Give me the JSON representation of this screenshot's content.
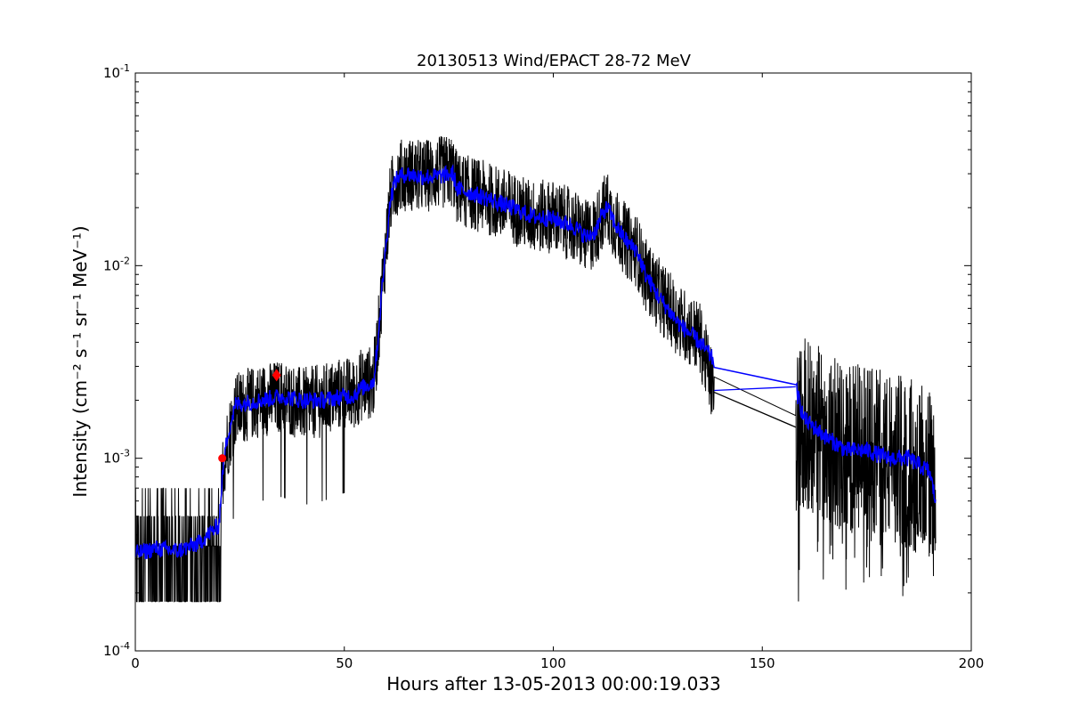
{
  "chart_data": {
    "type": "line",
    "title": "20130513 Wind/EPACT 28-72 MeV",
    "xlabel": "Hours after 13-05-2013 00:00:19.033",
    "ylabel": "Intensity (cm⁻² s⁻¹ sr⁻¹ MeV⁻¹)",
    "xlim": [
      0,
      200
    ],
    "ylim": [
      0.0001,
      0.1
    ],
    "yscale": "log",
    "grid": false,
    "x_ticks": [
      {
        "value": 0,
        "label": "0"
      },
      {
        "value": 50,
        "label": "50"
      },
      {
        "value": 100,
        "label": "100"
      },
      {
        "value": 150,
        "label": "150"
      },
      {
        "value": 200,
        "label": "200"
      }
    ],
    "y_ticks": [
      {
        "value": 0.0001,
        "base": "10",
        "exp": "-4"
      },
      {
        "value": 0.001,
        "base": "10",
        "exp": "-3"
      },
      {
        "value": 0.01,
        "base": "10",
        "exp": "-2"
      },
      {
        "value": 0.1,
        "base": "10",
        "exp": "-1"
      }
    ],
    "series": [
      {
        "style": "raw",
        "color": "#000000",
        "x": [
          0,
          5,
          10,
          15,
          20,
          20.5,
          21,
          22,
          24,
          30,
          35,
          40,
          45,
          50,
          52,
          54,
          57,
          58,
          59,
          60,
          61,
          62,
          63,
          65,
          68,
          72,
          76,
          77,
          80,
          85,
          90,
          95,
          100,
          105,
          108,
          110,
          112,
          113,
          115,
          118,
          120,
          122,
          125,
          130,
          135,
          138.5,
          158,
          160,
          165,
          170,
          175,
          180,
          185,
          190,
          191.5
        ],
        "y": [
          0.0003,
          0.00033,
          0.00031,
          0.00035,
          0.0004,
          0.0006,
          0.0009,
          0.0012,
          0.0018,
          0.002,
          0.0021,
          0.0019,
          0.002,
          0.0022,
          0.0021,
          0.0024,
          0.0025,
          0.004,
          0.0075,
          0.013,
          0.022,
          0.027,
          0.029,
          0.03,
          0.029,
          0.03,
          0.031,
          0.025,
          0.024,
          0.022,
          0.02,
          0.018,
          0.018,
          0.016,
          0.014,
          0.015,
          0.019,
          0.02,
          0.016,
          0.013,
          0.012,
          0.009,
          0.0072,
          0.0052,
          0.0042,
          0.0022,
          0.0014,
          0.0015,
          0.0013,
          0.0011,
          0.0011,
          0.001,
          0.00095,
          0.0008,
          0.0006
        ]
      },
      {
        "style": "smoothed",
        "color": "#0000ff",
        "x": [
          0,
          5,
          10,
          15,
          20,
          21,
          22,
          24,
          30,
          35,
          40,
          45,
          50,
          52,
          54,
          57,
          58,
          59,
          60,
          61,
          62,
          63,
          65,
          68,
          72,
          76,
          77,
          80,
          85,
          90,
          95,
          100,
          105,
          108,
          110,
          112,
          113,
          115,
          118,
          120,
          122,
          125,
          130,
          135,
          138.5,
          158,
          160,
          165,
          170,
          175,
          180,
          185,
          190,
          191.5
        ],
        "y": [
          0.00032,
          0.00034,
          0.00033,
          0.00036,
          0.00045,
          0.0009,
          0.0013,
          0.0019,
          0.002,
          0.0021,
          0.002,
          0.002,
          0.0021,
          0.0021,
          0.0023,
          0.0025,
          0.004,
          0.0075,
          0.013,
          0.022,
          0.027,
          0.029,
          0.03,
          0.029,
          0.029,
          0.03,
          0.025,
          0.024,
          0.022,
          0.02,
          0.018,
          0.0175,
          0.016,
          0.014,
          0.015,
          0.019,
          0.02,
          0.016,
          0.013,
          0.012,
          0.009,
          0.007,
          0.005,
          0.004,
          0.0032,
          0.0023,
          0.0016,
          0.0013,
          0.0011,
          0.0011,
          0.001,
          0.001,
          0.00085,
          0.0006
        ]
      }
    ],
    "markers": [
      {
        "x": 20.8,
        "y": 0.001,
        "color": "#ff0000",
        "shape": "circle"
      },
      {
        "x": 33.8,
        "y": 0.0027,
        "color": "#ff0000",
        "shape": "diamond"
      }
    ]
  }
}
